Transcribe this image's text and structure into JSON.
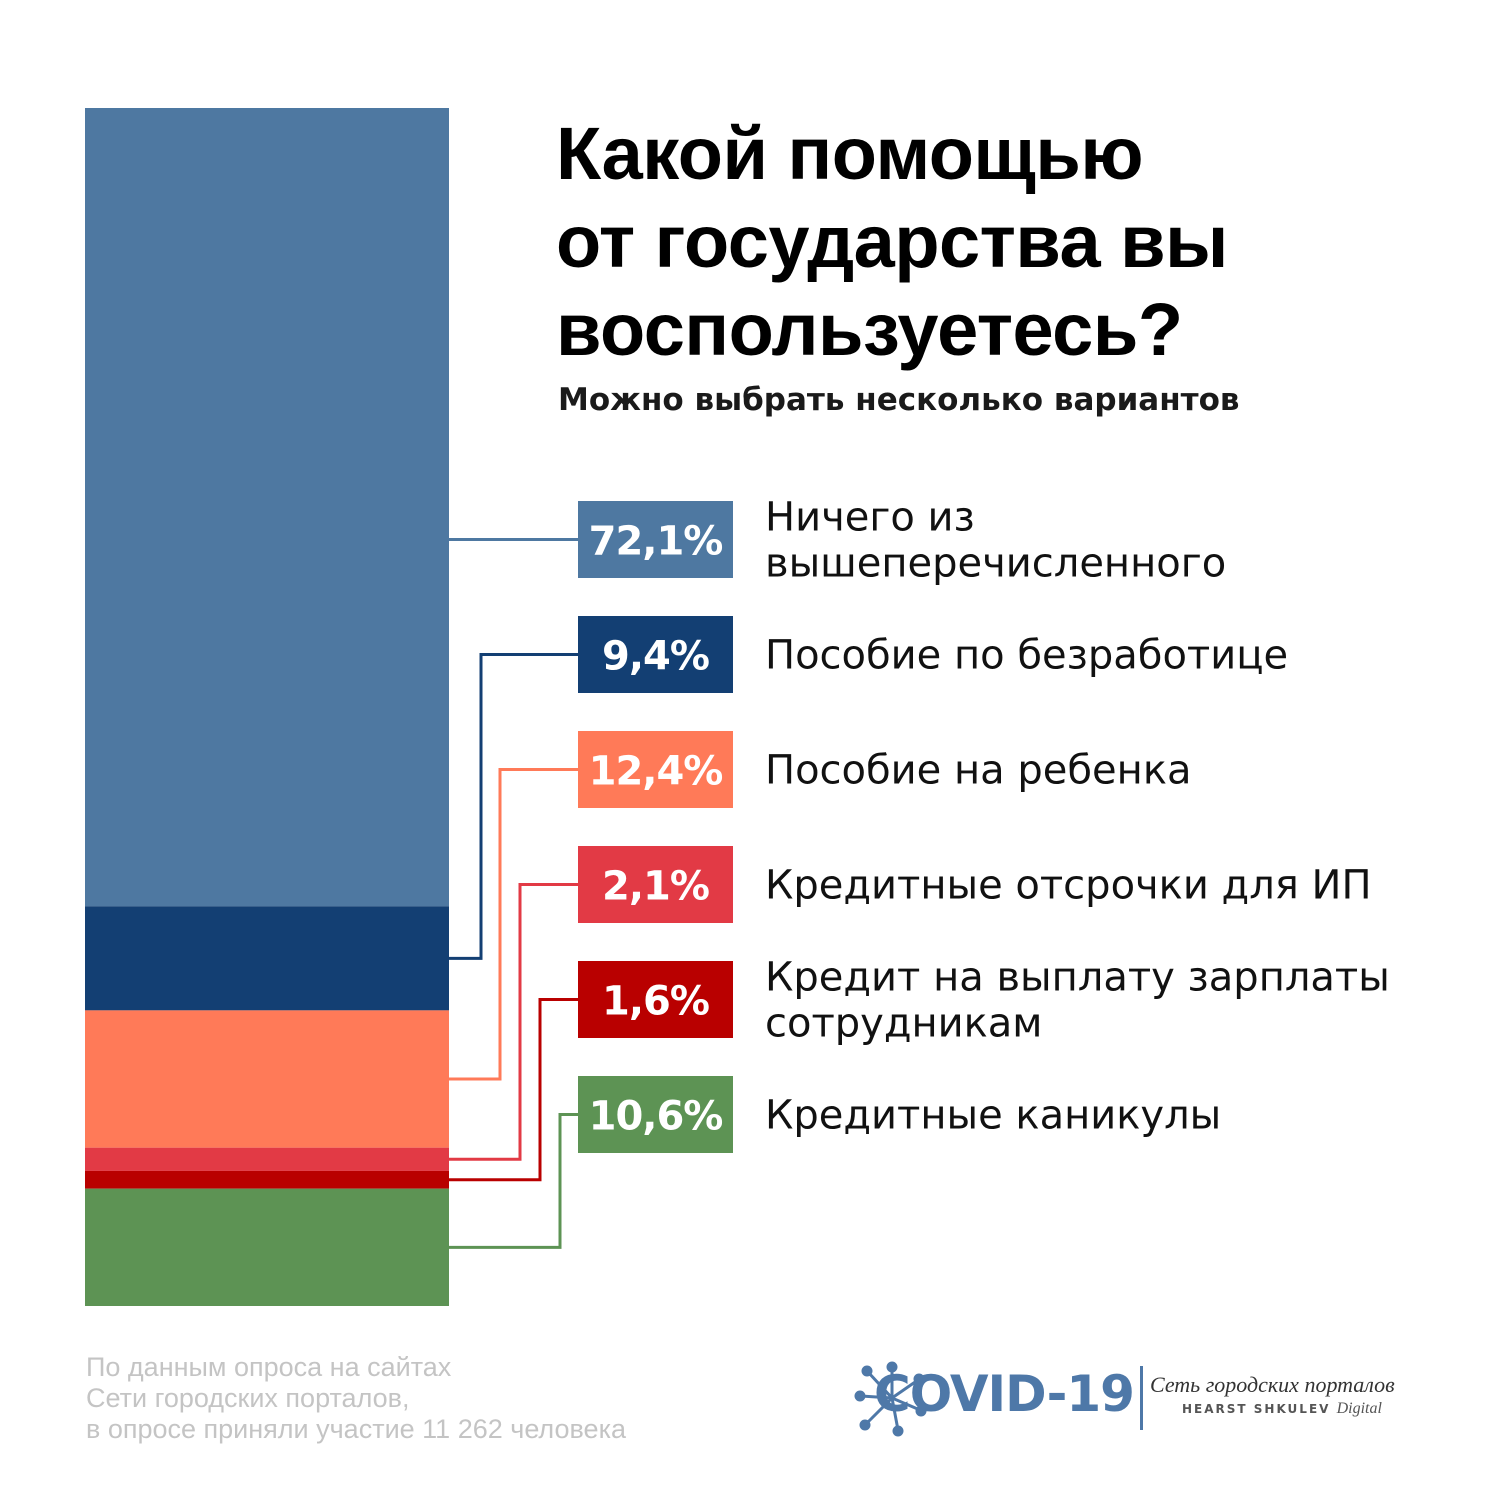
{
  "header": {
    "title_lines": [
      "Какой помощью",
      "от государства вы",
      "воспользуетесь?"
    ],
    "subtitle": "Можно выбрать несколько вариантов"
  },
  "chart_data": {
    "type": "bar",
    "layout": "stacked-column-with-callouts",
    "categories": [
      "Ничего из вышеперечисленного",
      "Пособие по безработице",
      "Пособие на ребенка",
      "Кредитные отсрочки для ИП",
      "Кредит на выплату зарплаты сотрудникам",
      "Кредитные каникулы"
    ],
    "label_lines": [
      [
        "Ничего из",
        "вышеперечисленного"
      ],
      [
        "Пособие по безработице"
      ],
      [
        "Пособие на ребенка"
      ],
      [
        "Кредитные отсрочки для ИП"
      ],
      [
        "Кредит на выплату зарплаты",
        "сотрудникам"
      ],
      [
        "Кредитные каникулы"
      ]
    ],
    "values": [
      72.1,
      9.4,
      12.4,
      2.1,
      1.6,
      10.6
    ],
    "value_labels": [
      "72,1%",
      "9,4%",
      "12,4%",
      "2,1%",
      "1,6%",
      "10,6%"
    ],
    "colors": [
      "#4e78a1",
      "#133f73",
      "#ff7a58",
      "#e23a45",
      "#b90000",
      "#5d9354"
    ],
    "unit": "%"
  },
  "footer": {
    "source_lines": [
      "По данным опроса на сайтах",
      "Сети городских порталов,",
      "в опросе приняли участие 11 262 человека"
    ],
    "logo": {
      "text": "COVID-19",
      "network": "Сеть городских порталов",
      "partner": "HEARST SHKULEV",
      "partner_suffix": "Digital",
      "color": "#4e78a8"
    }
  }
}
